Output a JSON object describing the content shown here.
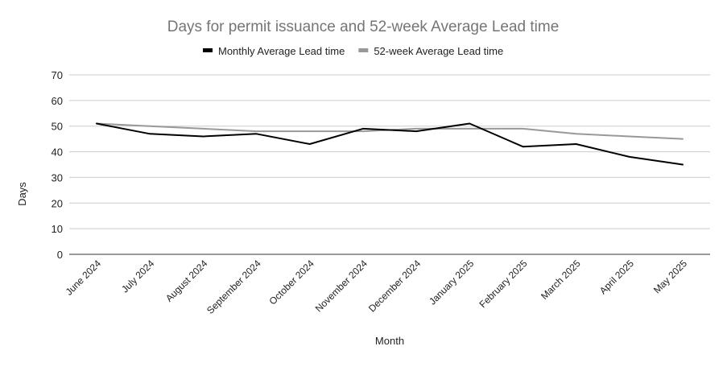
{
  "chart_data": {
    "type": "line",
    "title": "Days for permit issuance and 52-week Average Lead time",
    "xlabel": "Month",
    "ylabel": "Days",
    "categories": [
      "June 2024",
      "July 2024",
      "August 2024",
      "September 2024",
      "October 2024",
      "November 2024",
      "December 2024",
      "January 2025",
      "February 2025",
      "March 2025",
      "April 2025",
      "May 2025"
    ],
    "series": [
      {
        "name": "Monthly Average Lead time",
        "color": "#000000",
        "values": [
          51,
          47,
          46,
          47,
          43,
          49,
          48,
          51,
          42,
          43,
          38,
          35
        ]
      },
      {
        "name": "52-week Average Lead time",
        "color": "#999999",
        "values": [
          51,
          50,
          49,
          48,
          48,
          48,
          49,
          49,
          49,
          47,
          46,
          45
        ]
      }
    ],
    "ylim": [
      0,
      70
    ],
    "yticks": [
      "0",
      "10",
      "20",
      "30",
      "40",
      "50",
      "60",
      "70"
    ],
    "grid": true,
    "legend_position": "top-center"
  },
  "colors": {
    "title": "#757575",
    "text": "#222222",
    "grid": "#cccccc",
    "axis": "#333333"
  }
}
